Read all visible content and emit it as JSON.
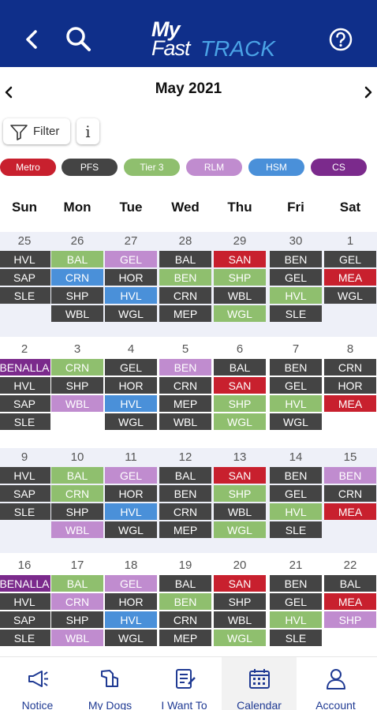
{
  "header": {
    "logo_my": "My",
    "logo_fast": "Fast",
    "logo_track": "TRACK"
  },
  "calendar_header": {
    "month": "May 2021"
  },
  "toolbar": {
    "filter_label": "Filter",
    "info_label": "i"
  },
  "categories": [
    {
      "label": "Metro",
      "color": "#c8202e"
    },
    {
      "label": "PFS",
      "color": "#444444"
    },
    {
      "label": "Tier 3",
      "color": "#8fbf6e"
    },
    {
      "label": "RLM",
      "color": "#c08ccf"
    },
    {
      "label": "HSM",
      "color": "#4a90d9"
    },
    {
      "label": "CS",
      "color": "#7b2a8c"
    }
  ],
  "weekdays": [
    "Sun",
    "Mon",
    "Tue",
    "Wed",
    "Thu",
    "Fri",
    "Sat"
  ],
  "weeks": [
    {
      "days": [
        {
          "num": "25",
          "events": [
            {
              "t": "HVL",
              "c": "PFS"
            },
            {
              "t": "SAP",
              "c": "PFS"
            },
            {
              "t": "SLE",
              "c": "PFS"
            }
          ]
        },
        {
          "num": "26",
          "events": [
            {
              "t": "BAL",
              "c": "Tier 3"
            },
            {
              "t": "CRN",
              "c": "HSM"
            },
            {
              "t": "SHP",
              "c": "PFS"
            },
            {
              "t": "WBL",
              "c": "PFS"
            }
          ]
        },
        {
          "num": "27",
          "events": [
            {
              "t": "GEL",
              "c": "RLM"
            },
            {
              "t": "HOR",
              "c": "PFS"
            },
            {
              "t": "HVL",
              "c": "HSM"
            },
            {
              "t": "WGL",
              "c": "PFS"
            }
          ]
        },
        {
          "num": "28",
          "events": [
            {
              "t": "BAL",
              "c": "PFS"
            },
            {
              "t": "BEN",
              "c": "Tier 3"
            },
            {
              "t": "CRN",
              "c": "PFS"
            },
            {
              "t": "MEP",
              "c": "PFS"
            }
          ]
        },
        {
          "num": "29",
          "events": [
            {
              "t": "SAN",
              "c": "Metro"
            },
            {
              "t": "SHP",
              "c": "Tier 3"
            },
            {
              "t": "WBL",
              "c": "PFS"
            },
            {
              "t": "WGL",
              "c": "Tier 3"
            }
          ]
        },
        {
          "num": "30",
          "events": [
            {
              "t": "BEN",
              "c": "PFS"
            },
            {
              "t": "GEL",
              "c": "PFS"
            },
            {
              "t": "HVL",
              "c": "Tier 3"
            },
            {
              "t": "SLE",
              "c": "PFS"
            }
          ]
        },
        {
          "num": "1",
          "events": [
            {
              "t": "GEL",
              "c": "PFS"
            },
            {
              "t": "MEA",
              "c": "Metro"
            },
            {
              "t": "WGL",
              "c": "PFS"
            }
          ]
        }
      ]
    },
    {
      "days": [
        {
          "num": "2",
          "events": [
            {
              "t": "BENALLA",
              "c": "CS"
            },
            {
              "t": "HVL",
              "c": "PFS"
            },
            {
              "t": "SAP",
              "c": "PFS"
            },
            {
              "t": "SLE",
              "c": "PFS"
            }
          ]
        },
        {
          "num": "3",
          "events": [
            {
              "t": "CRN",
              "c": "Tier 3"
            },
            {
              "t": "SHP",
              "c": "PFS"
            },
            {
              "t": "WBL",
              "c": "RLM"
            }
          ]
        },
        {
          "num": "4",
          "events": [
            {
              "t": "GEL",
              "c": "PFS"
            },
            {
              "t": "HOR",
              "c": "PFS"
            },
            {
              "t": "HVL",
              "c": "HSM"
            },
            {
              "t": "WGL",
              "c": "PFS"
            }
          ]
        },
        {
          "num": "5",
          "events": [
            {
              "t": "BEN",
              "c": "RLM"
            },
            {
              "t": "CRN",
              "c": "PFS"
            },
            {
              "t": "MEP",
              "c": "PFS"
            },
            {
              "t": "WBL",
              "c": "PFS"
            }
          ]
        },
        {
          "num": "6",
          "events": [
            {
              "t": "BAL",
              "c": "PFS"
            },
            {
              "t": "SAN",
              "c": "Metro"
            },
            {
              "t": "SHP",
              "c": "Tier 3"
            },
            {
              "t": "WGL",
              "c": "Tier 3"
            }
          ]
        },
        {
          "num": "7",
          "events": [
            {
              "t": "BEN",
              "c": "PFS"
            },
            {
              "t": "GEL",
              "c": "PFS"
            },
            {
              "t": "HVL",
              "c": "Tier 3"
            },
            {
              "t": "WGL",
              "c": "PFS"
            }
          ]
        },
        {
          "num": "8",
          "events": [
            {
              "t": "CRN",
              "c": "PFS"
            },
            {
              "t": "HOR",
              "c": "PFS"
            },
            {
              "t": "MEA",
              "c": "Metro"
            }
          ]
        }
      ]
    },
    {
      "days": [
        {
          "num": "9",
          "events": [
            {
              "t": "HVL",
              "c": "PFS"
            },
            {
              "t": "SAP",
              "c": "PFS"
            },
            {
              "t": "SLE",
              "c": "PFS"
            }
          ]
        },
        {
          "num": "10",
          "events": [
            {
              "t": "BAL",
              "c": "Tier 3"
            },
            {
              "t": "CRN",
              "c": "Tier 3"
            },
            {
              "t": "SHP",
              "c": "PFS"
            },
            {
              "t": "WBL",
              "c": "RLM"
            }
          ]
        },
        {
          "num": "11",
          "events": [
            {
              "t": "GEL",
              "c": "RLM"
            },
            {
              "t": "HOR",
              "c": "PFS"
            },
            {
              "t": "HVL",
              "c": "HSM"
            },
            {
              "t": "WGL",
              "c": "PFS"
            }
          ]
        },
        {
          "num": "12",
          "events": [
            {
              "t": "BAL",
              "c": "PFS"
            },
            {
              "t": "BEN",
              "c": "PFS"
            },
            {
              "t": "CRN",
              "c": "PFS"
            },
            {
              "t": "MEP",
              "c": "PFS"
            }
          ]
        },
        {
          "num": "13",
          "events": [
            {
              "t": "SAN",
              "c": "Metro"
            },
            {
              "t": "SHP",
              "c": "Tier 3"
            },
            {
              "t": "WBL",
              "c": "PFS"
            },
            {
              "t": "WGL",
              "c": "Tier 3"
            }
          ]
        },
        {
          "num": "14",
          "events": [
            {
              "t": "BEN",
              "c": "PFS"
            },
            {
              "t": "GEL",
              "c": "PFS"
            },
            {
              "t": "HVL",
              "c": "Tier 3"
            },
            {
              "t": "SLE",
              "c": "PFS"
            }
          ]
        },
        {
          "num": "15",
          "events": [
            {
              "t": "BEN",
              "c": "RLM"
            },
            {
              "t": "CRN",
              "c": "PFS"
            },
            {
              "t": "MEA",
              "c": "Metro"
            }
          ]
        }
      ]
    },
    {
      "days": [
        {
          "num": "16",
          "events": [
            {
              "t": "BENALLA",
              "c": "CS"
            },
            {
              "t": "HVL",
              "c": "PFS"
            },
            {
              "t": "SAP",
              "c": "PFS"
            },
            {
              "t": "SLE",
              "c": "PFS"
            }
          ]
        },
        {
          "num": "17",
          "events": [
            {
              "t": "BAL",
              "c": "Tier 3"
            },
            {
              "t": "CRN",
              "c": "RLM"
            },
            {
              "t": "SHP",
              "c": "PFS"
            },
            {
              "t": "WBL",
              "c": "RLM"
            }
          ]
        },
        {
          "num": "18",
          "events": [
            {
              "t": "GEL",
              "c": "RLM"
            },
            {
              "t": "HOR",
              "c": "PFS"
            },
            {
              "t": "HVL",
              "c": "HSM"
            },
            {
              "t": "WGL",
              "c": "PFS"
            }
          ]
        },
        {
          "num": "19",
          "events": [
            {
              "t": "BAL",
              "c": "PFS"
            },
            {
              "t": "BEN",
              "c": "Tier 3"
            },
            {
              "t": "CRN",
              "c": "PFS"
            },
            {
              "t": "MEP",
              "c": "PFS"
            }
          ]
        },
        {
          "num": "20",
          "events": [
            {
              "t": "SAN",
              "c": "Metro"
            },
            {
              "t": "SHP",
              "c": "PFS"
            },
            {
              "t": "WBL",
              "c": "PFS"
            },
            {
              "t": "WGL",
              "c": "Tier 3"
            }
          ]
        },
        {
          "num": "21",
          "events": [
            {
              "t": "BEN",
              "c": "PFS"
            },
            {
              "t": "GEL",
              "c": "PFS"
            },
            {
              "t": "HVL",
              "c": "Tier 3"
            },
            {
              "t": "SLE",
              "c": "PFS"
            }
          ]
        },
        {
          "num": "22",
          "events": [
            {
              "t": "BAL",
              "c": "PFS"
            },
            {
              "t": "MEA",
              "c": "Metro"
            },
            {
              "t": "SHP",
              "c": "RLM"
            }
          ]
        }
      ]
    }
  ],
  "bottom_nav": [
    {
      "label": "Notice",
      "icon": "megaphone-icon"
    },
    {
      "label": "My Dogs",
      "icon": "dog-icon"
    },
    {
      "label": "I Want To",
      "icon": "form-icon"
    },
    {
      "label": "Calendar",
      "icon": "calendar-icon",
      "active": true
    },
    {
      "label": "Account",
      "icon": "person-icon"
    }
  ]
}
